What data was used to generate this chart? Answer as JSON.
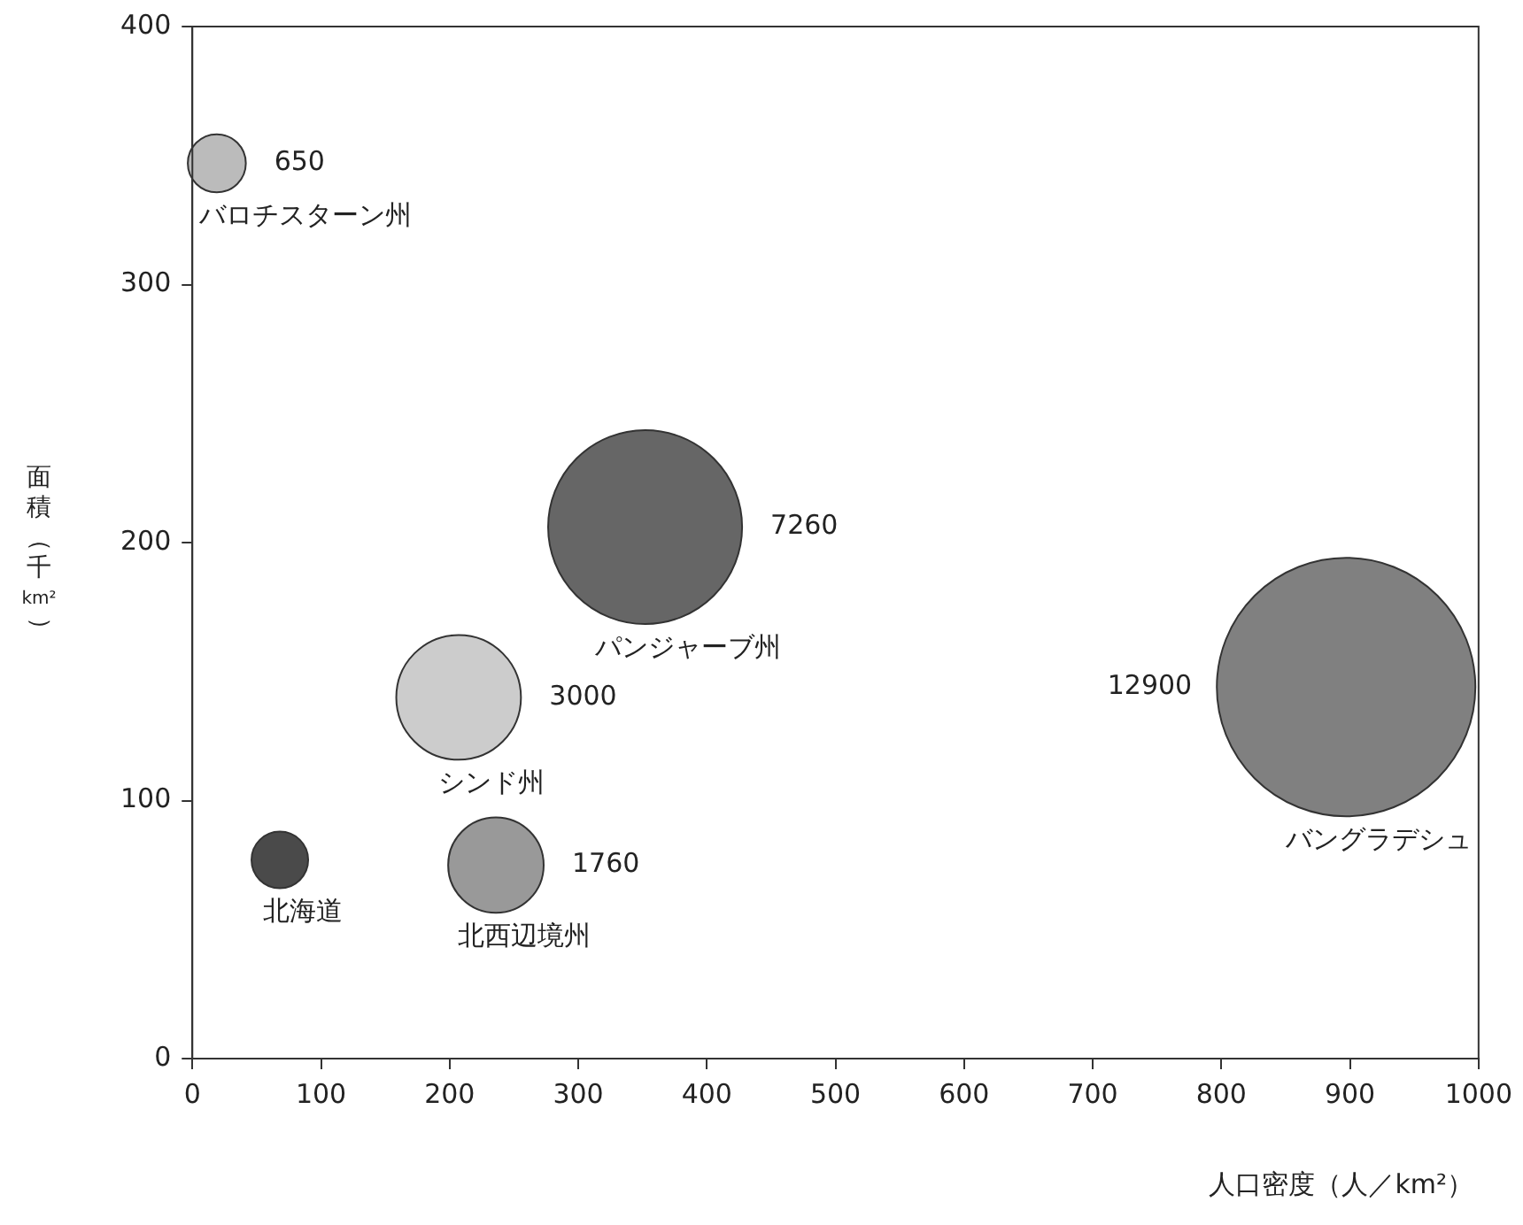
{
  "chart_data": {
    "type": "bubble",
    "xlabel": "人口密度（人／km²）",
    "ylabel": "面積（千km²）",
    "xlim": [
      0,
      1000
    ],
    "xticks": [
      0,
      100,
      200,
      300,
      400,
      500,
      600,
      700,
      800,
      900,
      1000
    ],
    "ylim": [
      0,
      400
    ],
    "yticks": [
      0,
      100,
      200,
      300,
      400
    ],
    "grid": false,
    "legend": false,
    "series": [
      {
        "name": "バロチスターン州",
        "color": "#bbbbbb",
        "x": [
          19
        ],
        "values": [
          347
        ],
        "sizes": [
          650
        ],
        "value_labels": [
          "650"
        ]
      },
      {
        "name": "パンジャーブ州",
        "color": "#666666",
        "x": [
          352
        ],
        "values": [
          206
        ],
        "sizes": [
          7260
        ],
        "value_labels": [
          "7260"
        ]
      },
      {
        "name": "シンド州",
        "color": "#cccccc",
        "x": [
          207
        ],
        "values": [
          140
        ],
        "sizes": [
          3000
        ],
        "value_labels": [
          "3000"
        ]
      },
      {
        "name": "北海道",
        "type": "scatter",
        "color": "#4a4a4a",
        "x": [
          68
        ],
        "values": [
          77
        ]
      },
      {
        "name": "北西辺境州",
        "color": "#999999",
        "x": [
          236
        ],
        "values": [
          75
        ],
        "sizes": [
          1760
        ],
        "value_labels": [
          "1760"
        ]
      },
      {
        "name": "バングラデシュ",
        "color": "#808080",
        "x": [
          897
        ],
        "values": [
          144
        ],
        "sizes": [
          12900
        ],
        "value_labels": [
          "12900"
        ]
      }
    ]
  }
}
